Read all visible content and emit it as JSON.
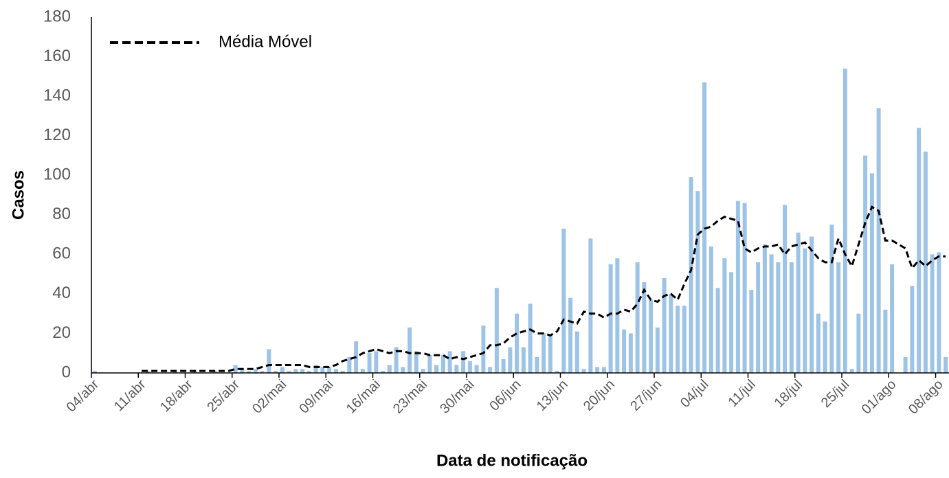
{
  "chart_data": {
    "type": "bar",
    "x_label": "Data de notificação",
    "y_label": "Casos",
    "color": "#9dc3e6",
    "categories": [
      "04/abr",
      null,
      null,
      null,
      null,
      null,
      null,
      "11/abr",
      null,
      null,
      null,
      null,
      null,
      null,
      "18/abr",
      null,
      null,
      null,
      null,
      null,
      null,
      "25/abr",
      null,
      null,
      null,
      null,
      null,
      null,
      "02/mai",
      null,
      null,
      null,
      null,
      null,
      null,
      "09/mai",
      null,
      null,
      null,
      null,
      null,
      null,
      "16/mai",
      null,
      null,
      null,
      null,
      null,
      null,
      "23/mai",
      null,
      null,
      null,
      null,
      null,
      null,
      "30/mai",
      null,
      null,
      null,
      null,
      null,
      null,
      "06/jun",
      null,
      null,
      null,
      null,
      null,
      null,
      "13/jun",
      null,
      null,
      null,
      null,
      null,
      null,
      "20/jun",
      null,
      null,
      null,
      null,
      null,
      null,
      "27/jun",
      null,
      null,
      null,
      null,
      null,
      null,
      "04/jul",
      null,
      null,
      null,
      null,
      null,
      null,
      "11/jul",
      null,
      null,
      null,
      null,
      null,
      null,
      "18/jul",
      null,
      null,
      null,
      null,
      null,
      null,
      "25/jul",
      null,
      null,
      null,
      null,
      null,
      null,
      "01/ago",
      null,
      null,
      null,
      null,
      null,
      null,
      "08/ago",
      null
    ],
    "values": [
      1,
      0,
      0,
      0,
      0,
      0,
      0,
      0,
      1,
      0,
      0,
      0,
      1,
      0,
      0,
      1,
      0,
      0,
      1,
      0,
      0,
      4,
      2,
      1,
      2,
      1,
      12,
      1,
      3,
      1,
      2,
      2,
      1,
      4,
      3,
      3,
      2,
      1,
      8,
      16,
      2,
      10,
      11,
      1,
      4,
      13,
      3,
      23,
      11,
      2,
      9,
      4,
      9,
      11,
      4,
      11,
      6,
      4,
      24,
      3,
      43,
      7,
      13,
      30,
      13,
      35,
      8,
      20,
      19,
      1,
      73,
      38,
      21,
      2,
      68,
      3,
      3,
      55,
      58,
      22,
      20,
      56,
      46,
      37,
      23,
      48,
      40,
      34,
      34,
      99,
      92,
      147,
      64,
      43,
      58,
      51,
      87,
      86,
      42,
      56,
      65,
      60,
      56,
      85,
      56,
      71,
      63,
      69,
      30,
      26,
      75,
      56,
      154,
      2,
      30,
      110,
      101,
      134,
      32,
      55,
      0,
      8,
      44,
      124,
      112,
      60,
      61,
      8
    ],
    "series": [
      {
        "name": "Média Móvel",
        "type": "line",
        "color": "#000000",
        "dashed": true,
        "values": [
          null,
          null,
          null,
          null,
          null,
          null,
          null,
          1,
          1,
          1,
          1,
          1,
          1,
          1,
          1,
          1,
          1,
          1,
          1,
          1,
          1,
          2,
          2,
          2,
          2,
          3,
          4,
          4,
          4,
          4,
          4,
          4,
          3,
          3,
          3,
          3,
          4,
          6,
          7,
          8,
          10,
          11,
          12,
          11,
          10,
          11,
          11,
          10,
          10,
          10,
          9,
          9,
          9,
          7,
          8,
          7,
          8,
          9,
          10,
          14,
          14,
          15,
          18,
          20,
          21,
          22,
          20,
          20,
          19,
          21,
          27,
          26,
          25,
          31,
          30,
          30,
          28,
          30,
          30,
          32,
          31,
          35,
          42,
          37,
          36,
          39,
          40,
          37,
          45,
          52,
          70,
          73,
          74,
          77,
          79,
          78,
          77,
          63,
          61,
          63,
          64,
          64,
          65,
          60,
          64,
          65,
          66,
          62,
          58,
          56,
          56,
          68,
          60,
          54,
          65,
          76,
          84,
          82,
          67,
          67,
          65,
          63,
          53,
          57,
          54,
          57,
          59,
          59
        ]
      }
    ],
    "ylim": [
      0,
      180
    ],
    "yticks": [
      0,
      20,
      40,
      60,
      80,
      100,
      120,
      140,
      160,
      180
    ],
    "grid": false,
    "legend": "top-left"
  }
}
